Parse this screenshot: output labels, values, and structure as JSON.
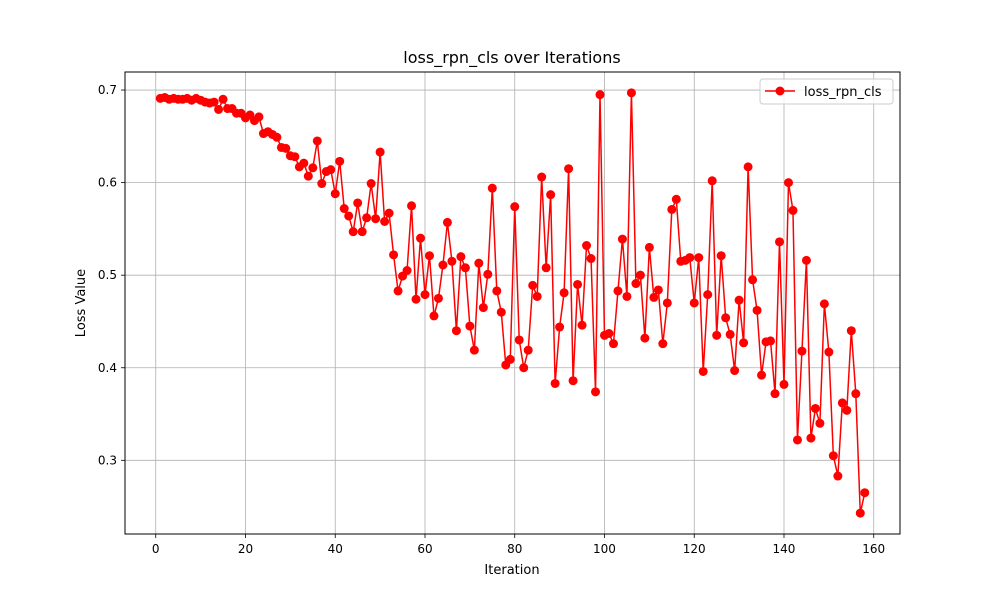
{
  "chart_data": {
    "type": "line",
    "title": "loss_rpn_cls over Iterations",
    "xlabel": "Iteration",
    "ylabel": "Loss Value",
    "xlim": [
      -6.85,
      165.85
    ],
    "ylim": [
      0.2204,
      0.7195
    ],
    "xticks": [
      0,
      20,
      40,
      60,
      80,
      100,
      120,
      140,
      160
    ],
    "yticks": [
      0.3,
      0.4,
      0.5,
      0.6,
      0.7
    ],
    "grid": true,
    "legend_position": "top-right",
    "colors": {
      "series": "#ff0000",
      "grid": "#b0b0b0"
    },
    "series": [
      {
        "name": "loss_rpn_cls",
        "marker": "circle",
        "x": [
          1,
          2,
          3,
          4,
          5,
          6,
          7,
          8,
          9,
          10,
          11,
          12,
          13,
          14,
          15,
          16,
          17,
          18,
          19,
          20,
          21,
          22,
          23,
          24,
          25,
          26,
          27,
          28,
          29,
          30,
          31,
          32,
          33,
          34,
          35,
          36,
          37,
          38,
          39,
          40,
          41,
          42,
          43,
          44,
          45,
          46,
          47,
          48,
          49,
          50,
          51,
          52,
          53,
          54,
          55,
          56,
          57,
          58,
          59,
          60,
          61,
          62,
          63,
          64,
          65,
          66,
          67,
          68,
          69,
          70,
          71,
          72,
          73,
          74,
          75,
          76,
          77,
          78,
          79,
          80,
          81,
          82,
          83,
          84,
          85,
          86,
          87,
          88,
          89,
          90,
          91,
          92,
          93,
          94,
          95,
          96,
          97,
          98,
          99,
          100,
          101,
          102,
          103,
          104,
          105,
          106,
          107,
          108,
          109,
          110,
          111,
          112,
          113,
          114,
          115,
          116,
          117,
          118,
          119,
          120,
          121,
          122,
          123,
          124,
          125,
          126,
          127,
          128,
          129,
          130,
          131,
          132,
          133,
          134,
          135,
          136,
          137,
          138,
          139,
          140,
          141,
          142,
          143,
          144,
          145,
          146,
          147,
          148,
          149,
          150,
          151,
          152,
          153,
          154,
          155,
          156,
          157,
          158
        ],
        "y": [
          0.691,
          0.692,
          0.69,
          0.691,
          0.69,
          0.69,
          0.691,
          0.689,
          0.691,
          0.689,
          0.687,
          0.686,
          0.687,
          0.679,
          0.69,
          0.68,
          0.68,
          0.675,
          0.675,
          0.67,
          0.673,
          0.667,
          0.671,
          0.653,
          0.655,
          0.652,
          0.649,
          0.638,
          0.637,
          0.629,
          0.628,
          0.617,
          0.621,
          0.607,
          0.616,
          0.645,
          0.599,
          0.612,
          0.614,
          0.588,
          0.623,
          0.572,
          0.564,
          0.547,
          0.578,
          0.547,
          0.562,
          0.599,
          0.561,
          0.633,
          0.558,
          0.567,
          0.522,
          0.483,
          0.499,
          0.505,
          0.575,
          0.474,
          0.54,
          0.479,
          0.521,
          0.456,
          0.475,
          0.511,
          0.557,
          0.515,
          0.44,
          0.52,
          0.508,
          0.445,
          0.419,
          0.513,
          0.465,
          0.501,
          0.594,
          0.483,
          0.46,
          0.403,
          0.409,
          0.574,
          0.43,
          0.4,
          0.419,
          0.489,
          0.477,
          0.606,
          0.508,
          0.587,
          0.383,
          0.444,
          0.481,
          0.615,
          0.386,
          0.49,
          0.446,
          0.532,
          0.518,
          0.374,
          0.695,
          0.435,
          0.437,
          0.426,
          0.483,
          0.539,
          0.477,
          0.697,
          0.491,
          0.5,
          0.432,
          0.53,
          0.476,
          0.484,
          0.426,
          0.47,
          0.571,
          0.582,
          0.515,
          0.516,
          0.519,
          0.47,
          0.519,
          0.396,
          0.479,
          0.602,
          0.435,
          0.521,
          0.454,
          0.436,
          0.397,
          0.473,
          0.427,
          0.617,
          0.495,
          0.462,
          0.392,
          0.428,
          0.429,
          0.372,
          0.536,
          0.382,
          0.6,
          0.57,
          0.322,
          0.418,
          0.516,
          0.324,
          0.356,
          0.34,
          0.469,
          0.417,
          0.305,
          0.283,
          0.362,
          0.354,
          0.44,
          0.372,
          0.243,
          0.265
        ]
      }
    ]
  }
}
